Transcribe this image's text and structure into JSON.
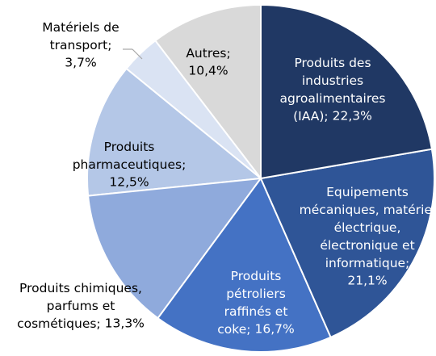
{
  "chart_data": {
    "type": "pie",
    "categories": [
      "Produits des industries agroalimentaires (IAA);",
      "Equipements mécaniques, matériel électrique, électronique et informatique;",
      "Produits pétroliers raffinés et coke;",
      "Produits chimiques, parfums et cosmétiques;",
      "Produits pharmaceutiques;",
      "Matériels de transport;",
      "Autres;"
    ],
    "values": [
      22.3,
      21.1,
      16.7,
      13.3,
      12.5,
      3.7,
      10.4
    ],
    "value_labels": [
      "22,3%",
      "21,1%",
      "16,7%",
      "13,3%",
      "12,5%",
      "3,7%",
      "10,4%"
    ],
    "colors": [
      "#203864",
      "#2f5597",
      "#4472c4",
      "#8faadc",
      "#b4c7e7",
      "#dae3f3",
      "#d9d9d9"
    ]
  }
}
